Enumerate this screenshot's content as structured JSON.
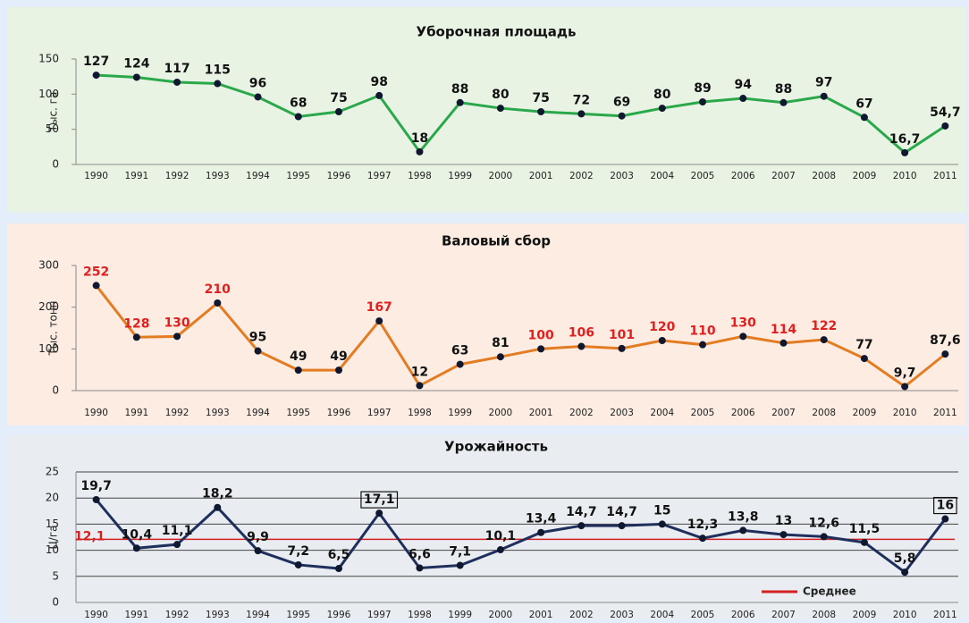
{
  "chart_data": [
    {
      "type": "line",
      "title": "Уборочная площадь",
      "ylabel": "Тыс. га",
      "color": "#2aa84a",
      "value_label_color": "#111111",
      "grid": false,
      "categories": [
        "1990",
        "1991",
        "1992",
        "1993",
        "1994",
        "1995",
        "1996",
        "1997",
        "1998",
        "1999",
        "2000",
        "2001",
        "2002",
        "2003",
        "2004",
        "2005",
        "2006",
        "2007",
        "2008",
        "2009",
        "2010",
        "2011"
      ],
      "values": [
        127,
        124,
        117,
        115,
        96,
        68,
        75,
        98,
        18,
        88,
        80,
        75,
        72,
        69,
        80,
        89,
        94,
        88,
        97,
        67,
        16.7,
        54.7
      ],
      "value_labels": [
        "127",
        "124",
        "117",
        "115",
        "96",
        "68",
        "75",
        "98",
        "18",
        "88",
        "80",
        "75",
        "72",
        "69",
        "80",
        "89",
        "94",
        "88",
        "97",
        "67",
        "16,7",
        "54,7"
      ],
      "ylim": [
        0,
        150
      ],
      "yticks": [
        0,
        50,
        100,
        150
      ]
    },
    {
      "type": "line",
      "title": "Валовый сбор",
      "ylabel": "Тыс. тонн",
      "color": "#e37c22",
      "grid": false,
      "categories": [
        "1990",
        "1991",
        "1992",
        "1993",
        "1994",
        "1995",
        "1996",
        "1997",
        "1998",
        "1999",
        "2000",
        "2001",
        "2002",
        "2003",
        "2004",
        "2005",
        "2006",
        "2007",
        "2008",
        "2009",
        "2010",
        "2011"
      ],
      "values": [
        252,
        128,
        130,
        210,
        95,
        49,
        49,
        167,
        12,
        63,
        81,
        100,
        106,
        101,
        120,
        110,
        130,
        114,
        122,
        77,
        9.7,
        87.6
      ],
      "value_labels": [
        "252",
        "128",
        "130",
        "210",
        "95",
        "49",
        "49",
        "167",
        "12",
        "63",
        "81",
        "100",
        "106",
        "101",
        "120",
        "110",
        "130",
        "114",
        "122",
        "77",
        "9,7",
        "87,6"
      ],
      "value_label_colors": [
        "#e02020",
        "#e02020",
        "#e02020",
        "#e02020",
        "#111111",
        "#111111",
        "#111111",
        "#e02020",
        "#111111",
        "#111111",
        "#111111",
        "#e02020",
        "#e02020",
        "#e02020",
        "#e02020",
        "#e02020",
        "#e02020",
        "#e02020",
        "#e02020",
        "#111111",
        "#111111",
        "#111111"
      ],
      "ylim": [
        0,
        300
      ],
      "yticks": [
        0,
        100,
        200,
        300
      ]
    },
    {
      "type": "line",
      "title": "Урожайность",
      "ylabel": "Ц/га",
      "color": "#1f2f5c",
      "value_label_color": "#111111",
      "grid": true,
      "categories": [
        "1990",
        "1991",
        "1992",
        "1993",
        "1994",
        "1995",
        "1996",
        "1997",
        "1998",
        "1999",
        "2000",
        "2001",
        "2002",
        "2003",
        "2004",
        "2005",
        "2006",
        "2007",
        "2008",
        "2009",
        "2010",
        "2011"
      ],
      "values": [
        19.7,
        10.4,
        11.1,
        18.2,
        9.9,
        7.2,
        6.5,
        17.1,
        6.6,
        7.1,
        10.1,
        13.4,
        14.7,
        14.7,
        15,
        12.3,
        13.8,
        13,
        12.6,
        11.5,
        5.8,
        16
      ],
      "value_labels": [
        "19,7",
        "10,4",
        "11,1",
        "18,2",
        "9,9",
        "7,2",
        "6,5",
        "17,1",
        "6,6",
        "7,1",
        "10,1",
        "13,4",
        "14,7",
        "14,7",
        "15",
        "12,3",
        "13,8",
        "13",
        "12,6",
        "11,5",
        "5,8",
        "16"
      ],
      "ylim": [
        0,
        25
      ],
      "yticks": [
        0,
        5,
        10,
        15,
        20,
        25
      ],
      "average": 12.1,
      "average_label": "12,1",
      "average_color": "#d42020",
      "average_name": "Среднее"
    }
  ]
}
